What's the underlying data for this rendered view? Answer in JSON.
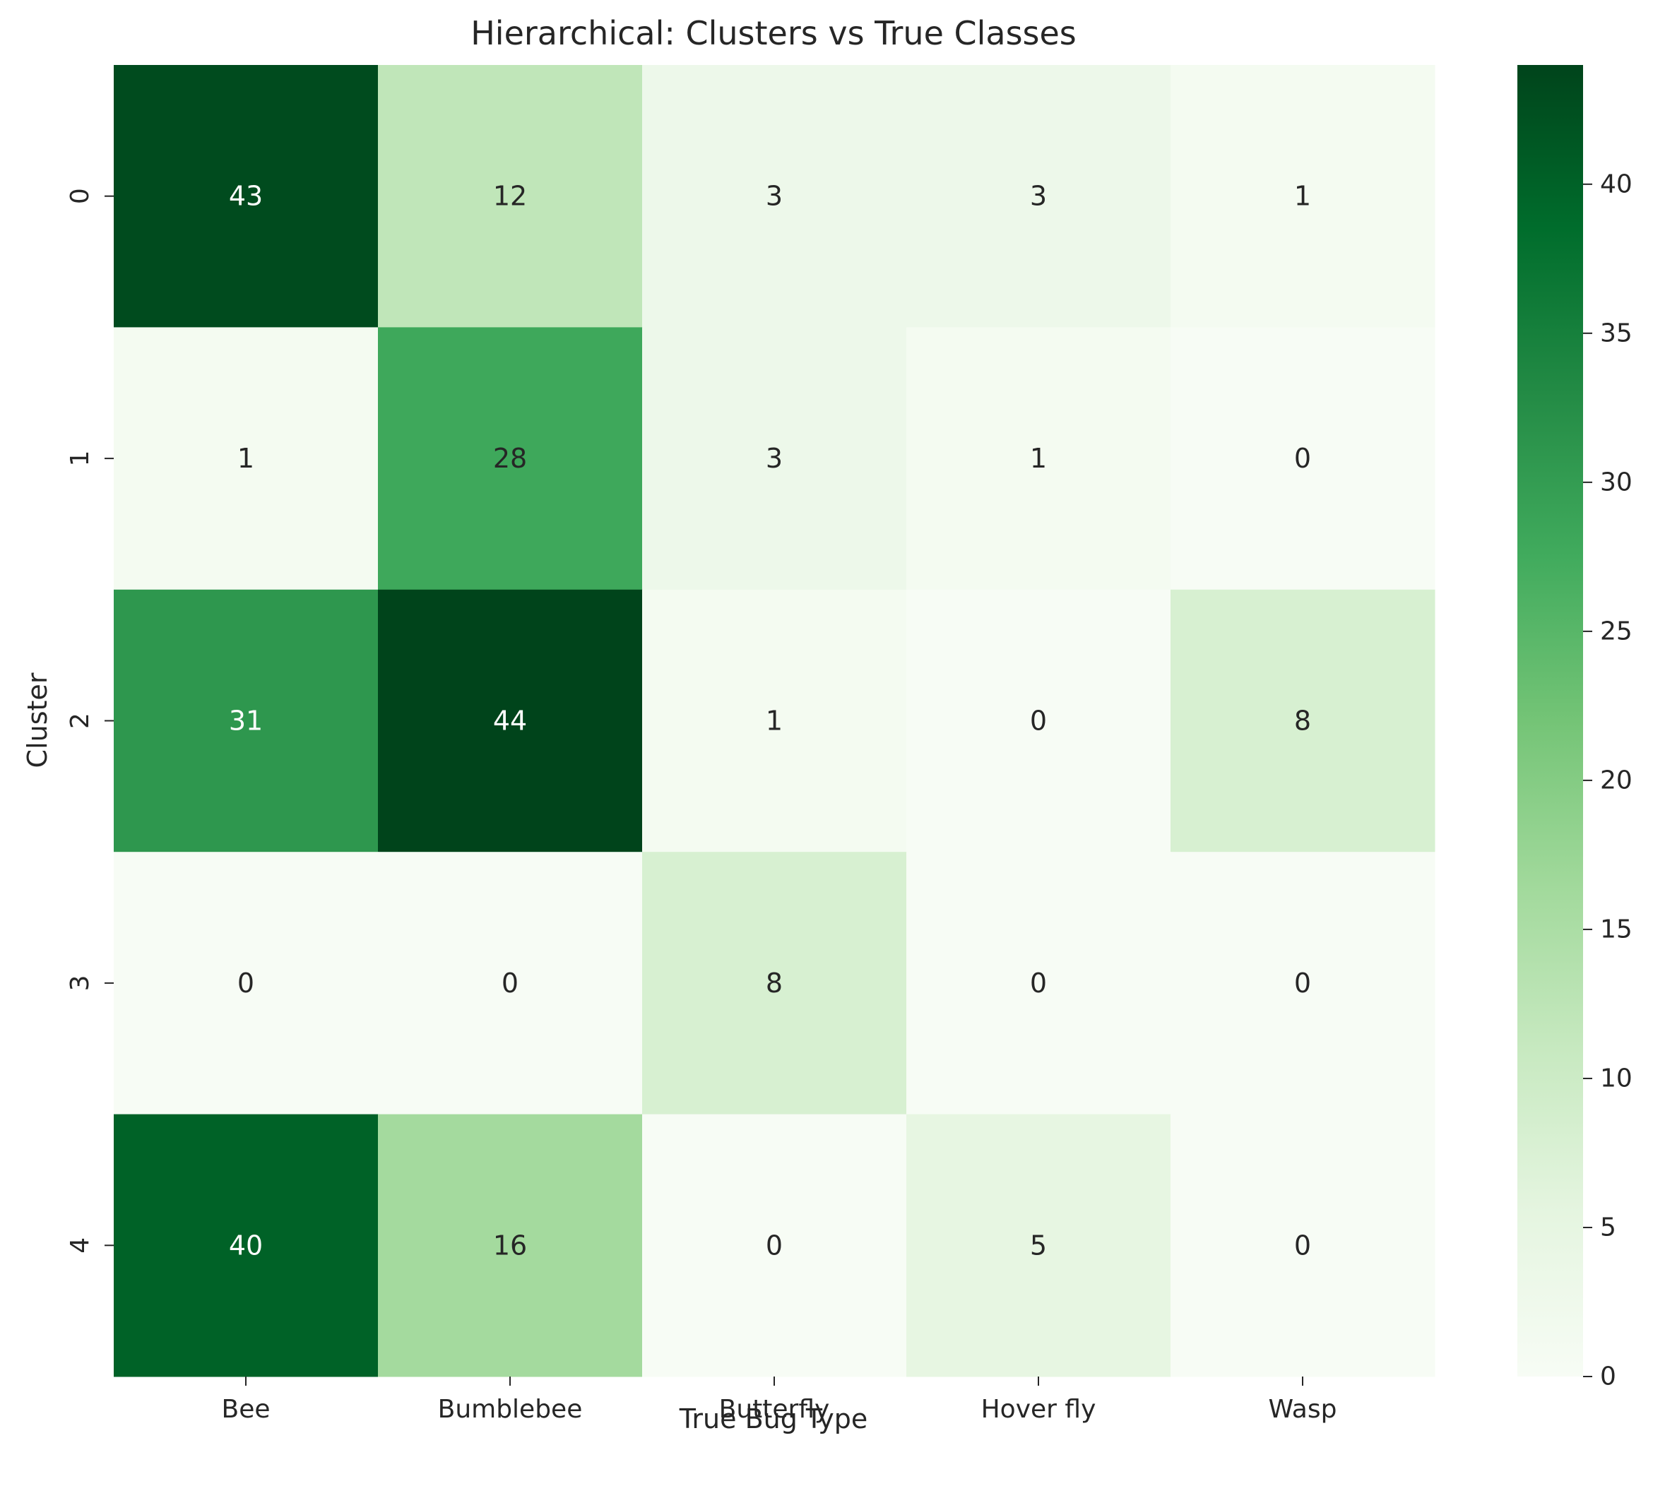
{
  "chart_data": {
    "type": "heatmap",
    "title": "Hierarchical: Clusters vs True Classes",
    "xlabel": "True Bug Type",
    "ylabel": "Cluster",
    "x_categories": [
      "Bee",
      "Bumblebee",
      "Butterfly",
      "Hover fly",
      "Wasp"
    ],
    "y_categories": [
      "0",
      "1",
      "2",
      "3",
      "4"
    ],
    "values": [
      [
        43,
        12,
        3,
        3,
        1
      ],
      [
        1,
        28,
        3,
        1,
        0
      ],
      [
        31,
        44,
        1,
        0,
        8
      ],
      [
        0,
        0,
        8,
        0,
        0
      ],
      [
        40,
        16,
        0,
        5,
        0
      ]
    ],
    "colormap": "Greens",
    "color_range": [
      0,
      44
    ],
    "colorbar_ticks": [
      "0",
      "5",
      "10",
      "15",
      "20",
      "25",
      "30",
      "35",
      "40"
    ],
    "grid": false
  }
}
